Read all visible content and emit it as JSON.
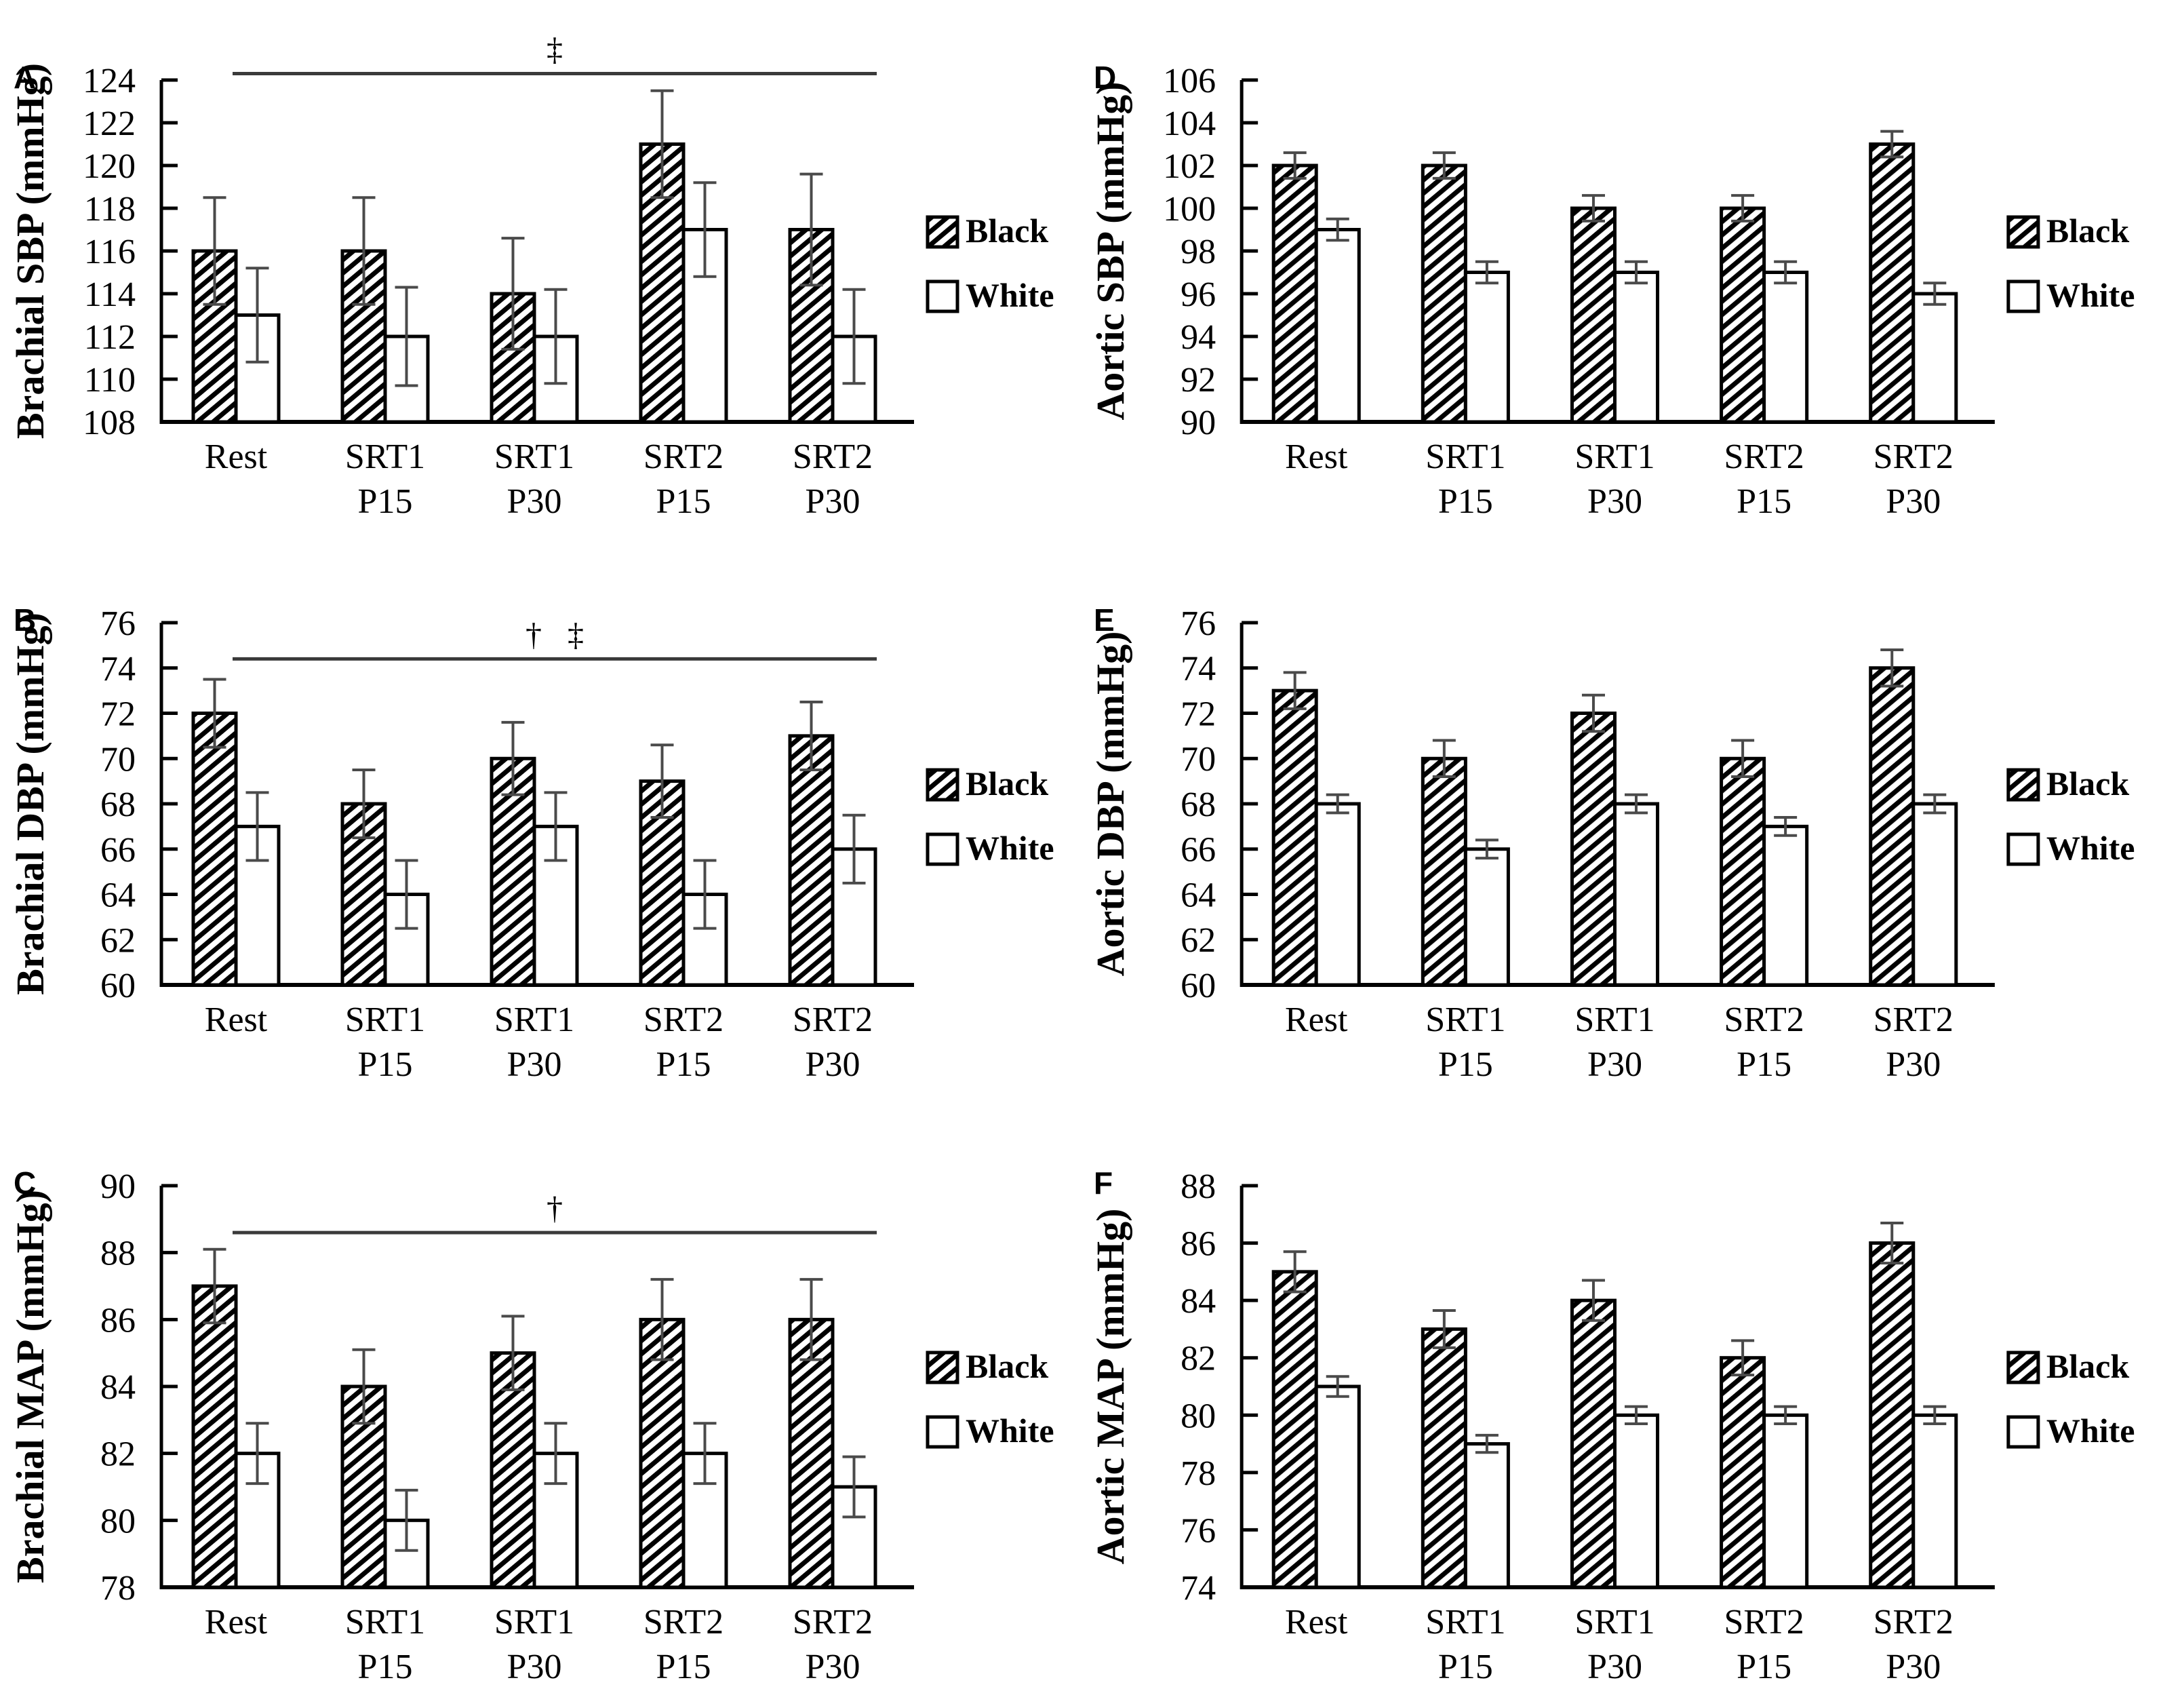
{
  "figure": {
    "legend": {
      "items": [
        {
          "label": "Black",
          "marker": "hatched-square"
        },
        {
          "label": "White",
          "marker": "open-square"
        }
      ]
    },
    "colors": {
      "bar_fill_black": "#000000",
      "bar_fill_white": "#ffffff",
      "bar_border": "#000000",
      "error_bar": "#4a4a4a",
      "sig_line": "#3a3a3a",
      "axis": "#000000",
      "text": "#000000",
      "background": "#ffffff"
    }
  },
  "categories": [
    [
      "Rest",
      ""
    ],
    [
      "SRT1",
      "P15"
    ],
    [
      "SRT1",
      "P30"
    ],
    [
      "SRT2",
      "P15"
    ],
    [
      "SRT2",
      "P30"
    ]
  ],
  "chart_data": [
    {
      "letter": "A",
      "type": "bar",
      "ylabel": "Brachial SBP (mmHg)",
      "ylim": [
        108,
        124
      ],
      "ystep": 2,
      "categories": [
        "Rest",
        "SRT1 P15",
        "SRT1 P30",
        "SRT2 P15",
        "SRT2 P30"
      ],
      "series": [
        {
          "name": "Black",
          "style": "hatched",
          "values": [
            116,
            116,
            114,
            121,
            117
          ],
          "errors": [
            2.5,
            2.5,
            2.6,
            2.5,
            2.6
          ]
        },
        {
          "name": "White",
          "style": "open",
          "values": [
            113,
            112,
            112,
            117,
            112
          ],
          "errors": [
            2.2,
            2.3,
            2.2,
            2.2,
            2.2
          ]
        }
      ],
      "significance": {
        "symbols": "‡",
        "line_y": 124.3
      }
    },
    {
      "letter": "B",
      "type": "bar",
      "ylabel": "Brachial DBP (mmHg)",
      "ylim": [
        60,
        76
      ],
      "ystep": 2,
      "categories": [
        "Rest",
        "SRT1 P15",
        "SRT1 P30",
        "SRT2 P15",
        "SRT2 P30"
      ],
      "series": [
        {
          "name": "Black",
          "style": "hatched",
          "values": [
            72,
            68,
            70,
            69,
            71
          ],
          "errors": [
            1.5,
            1.5,
            1.6,
            1.6,
            1.5
          ]
        },
        {
          "name": "White",
          "style": "open",
          "values": [
            67,
            64,
            67,
            64,
            66
          ],
          "errors": [
            1.5,
            1.5,
            1.5,
            1.5,
            1.5
          ]
        }
      ],
      "significance": {
        "symbols": "† ‡",
        "line_y": 74.4
      }
    },
    {
      "letter": "C",
      "type": "bar",
      "ylabel": "Brachial MAP (mmHg)",
      "ylim": [
        78,
        90
      ],
      "ystep": 2,
      "categories": [
        "Rest",
        "SRT1 P15",
        "SRT1 P30",
        "SRT2 P15",
        "SRT2 P30"
      ],
      "series": [
        {
          "name": "Black",
          "style": "hatched",
          "values": [
            87,
            84,
            85,
            86,
            86
          ],
          "errors": [
            1.1,
            1.1,
            1.1,
            1.2,
            1.2
          ]
        },
        {
          "name": "White",
          "style": "open",
          "values": [
            82,
            80,
            82,
            82,
            81
          ],
          "errors": [
            0.9,
            0.9,
            0.9,
            0.9,
            0.9
          ]
        }
      ],
      "significance": {
        "symbols": "†",
        "line_y": 88.6
      }
    },
    {
      "letter": "D",
      "type": "bar",
      "ylabel": "Aortic SBP (mmHg)",
      "ylim": [
        90,
        106
      ],
      "ystep": 2,
      "categories": [
        "Rest",
        "SRT1 P15",
        "SRT1 P30",
        "SRT2 P15",
        "SRT2 P30"
      ],
      "series": [
        {
          "name": "Black",
          "style": "hatched",
          "values": [
            102,
            102,
            100,
            100,
            103
          ],
          "errors": [
            0.6,
            0.6,
            0.6,
            0.6,
            0.6
          ]
        },
        {
          "name": "White",
          "style": "open",
          "values": [
            99,
            97,
            97,
            97,
            96
          ],
          "errors": [
            0.5,
            0.5,
            0.5,
            0.5,
            0.5
          ]
        }
      ],
      "significance": null
    },
    {
      "letter": "E",
      "type": "bar",
      "ylabel": "Aortic DBP (mmHg)",
      "ylim": [
        60,
        76
      ],
      "ystep": 2,
      "categories": [
        "Rest",
        "SRT1 P15",
        "SRT1 P30",
        "SRT2 P15",
        "SRT2 P30"
      ],
      "series": [
        {
          "name": "Black",
          "style": "hatched",
          "values": [
            73,
            70,
            72,
            70,
            74
          ],
          "errors": [
            0.8,
            0.8,
            0.8,
            0.8,
            0.8
          ]
        },
        {
          "name": "White",
          "style": "open",
          "values": [
            68,
            66,
            68,
            67,
            68
          ],
          "errors": [
            0.4,
            0.4,
            0.4,
            0.4,
            0.4
          ]
        }
      ],
      "significance": null
    },
    {
      "letter": "F",
      "type": "bar",
      "ylabel": "Aortic MAP (mmHg)",
      "ylim": [
        74,
        88
      ],
      "ystep": 2,
      "categories": [
        "Rest",
        "SRT1 P15",
        "SRT1 P30",
        "SRT2 P15",
        "SRT2 P30"
      ],
      "series": [
        {
          "name": "Black",
          "style": "hatched",
          "values": [
            85,
            83,
            84,
            82,
            86
          ],
          "errors": [
            0.7,
            0.65,
            0.7,
            0.6,
            0.7
          ]
        },
        {
          "name": "White",
          "style": "open",
          "values": [
            81,
            79,
            80,
            80,
            80
          ],
          "errors": [
            0.35,
            0.3,
            0.3,
            0.3,
            0.3
          ]
        }
      ],
      "significance": null
    }
  ]
}
